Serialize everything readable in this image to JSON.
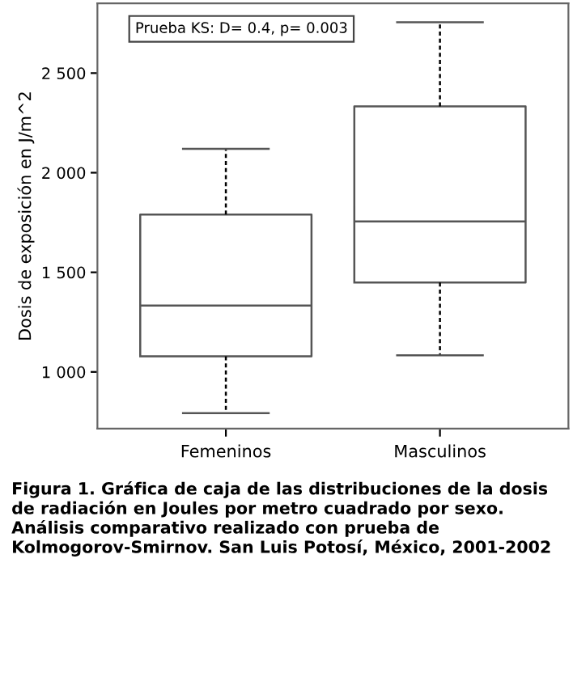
{
  "chart_data": {
    "type": "box",
    "ylabel": "Dosis de exposición en J/m^2",
    "categories": [
      "Femeninos",
      "Masculinos"
    ],
    "boxes": [
      {
        "low": 793,
        "q1": 1078,
        "median": 1333,
        "q3": 1790,
        "high": 2120
      },
      {
        "low": 1083,
        "q1": 1449,
        "median": 1755,
        "q3": 2333,
        "high": 2755
      }
    ],
    "color": "#555555",
    "ylim": [
      715,
      2850
    ],
    "yticks": [
      {
        "value": 1000,
        "label": "1 000"
      },
      {
        "value": 1500,
        "label": "1 500"
      },
      {
        "value": 2000,
        "label": "2 000"
      },
      {
        "value": 2500,
        "label": "2 500"
      }
    ],
    "grid": false,
    "annotations": [
      "Prueba KS: D= 0.4, p= 0.003",
      "Figura 1. Gráfica de caja de las distribuciones de la dosis de radiación en Joules por metro cuadrado por sexo. Análisis comparativo realizado con prueba de Kolmogorov-Smirnov. San Luis Potosí, México, 2001-2002"
    ]
  }
}
